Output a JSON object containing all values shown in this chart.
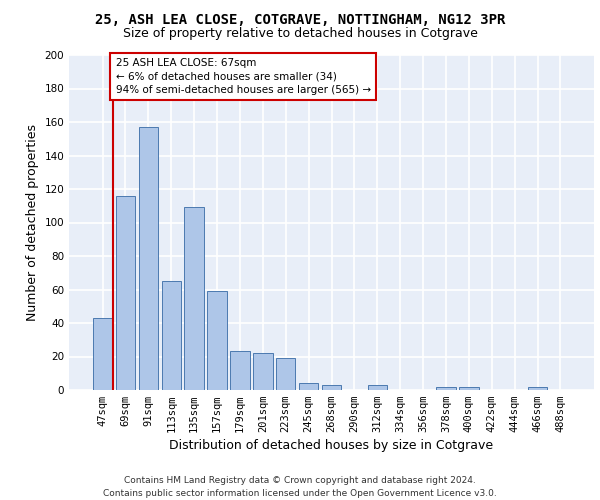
{
  "title1": "25, ASH LEA CLOSE, COTGRAVE, NOTTINGHAM, NG12 3PR",
  "title2": "Size of property relative to detached houses in Cotgrave",
  "xlabel": "Distribution of detached houses by size in Cotgrave",
  "ylabel": "Number of detached properties",
  "footer1": "Contains HM Land Registry data © Crown copyright and database right 2024.",
  "footer2": "Contains public sector information licensed under the Open Government Licence v3.0.",
  "categories": [
    "47sqm",
    "69sqm",
    "91sqm",
    "113sqm",
    "135sqm",
    "157sqm",
    "179sqm",
    "201sqm",
    "223sqm",
    "245sqm",
    "268sqm",
    "290sqm",
    "312sqm",
    "334sqm",
    "356sqm",
    "378sqm",
    "400sqm",
    "422sqm",
    "444sqm",
    "466sqm",
    "488sqm"
  ],
  "values": [
    43,
    116,
    157,
    65,
    109,
    59,
    23,
    22,
    19,
    4,
    3,
    0,
    3,
    0,
    0,
    2,
    2,
    0,
    0,
    2,
    0
  ],
  "bar_color": "#aec6e8",
  "bar_edge_color": "#4c7ab0",
  "annotation_text": "25 ASH LEA CLOSE: 67sqm\n← 6% of detached houses are smaller (34)\n94% of semi-detached houses are larger (565) →",
  "vline_color": "#cc0000",
  "box_color": "#cc0000",
  "ylim": [
    0,
    200
  ],
  "yticks": [
    0,
    20,
    40,
    60,
    80,
    100,
    120,
    140,
    160,
    180,
    200
  ],
  "background_color": "#e8eef8",
  "grid_color": "#ffffff",
  "title1_fontsize": 10,
  "title2_fontsize": 9,
  "xlabel_fontsize": 9,
  "ylabel_fontsize": 9,
  "footer_fontsize": 6.5,
  "tick_fontsize": 7.5
}
